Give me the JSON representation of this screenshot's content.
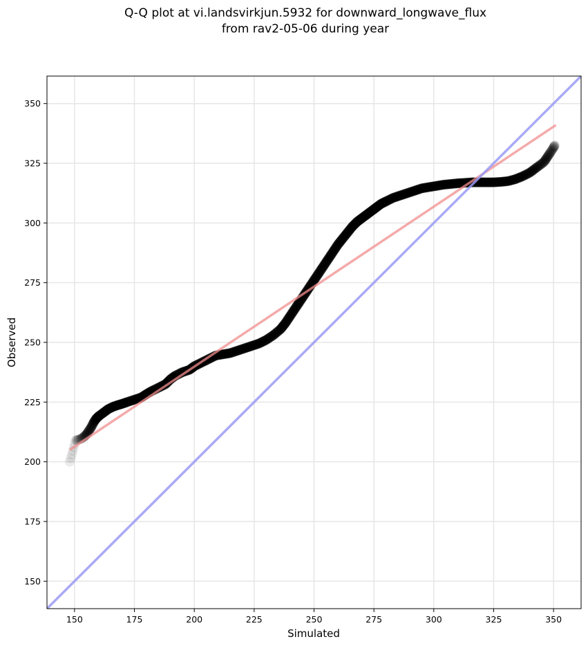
{
  "chart_data": {
    "type": "scatter",
    "title_lines": [
      "Q-Q plot at vi.landsvirkjun.5932 for downward_longwave_flux",
      "from rav2-05-06 during year"
    ],
    "xlabel": "Simulated",
    "ylabel": "Observed",
    "xlim": [
      138.5,
      361.5
    ],
    "ylim": [
      138.5,
      361.5
    ],
    "xticks": [
      150,
      175,
      200,
      225,
      250,
      275,
      300,
      325,
      350
    ],
    "yticks": [
      150,
      175,
      200,
      225,
      250,
      275,
      300,
      325,
      350
    ],
    "grid": true,
    "series": [
      {
        "kind": "quantile-points",
        "color": "#000000",
        "x": [
          148,
          150.5,
          152.5,
          154,
          155,
          156,
          157,
          158,
          159,
          160,
          162,
          164,
          166,
          168,
          170,
          172,
          175,
          178,
          180,
          182,
          185,
          188,
          190,
          192,
          195,
          198,
          200,
          203,
          206,
          209,
          212,
          215,
          218,
          221,
          224,
          227,
          230,
          233,
          236,
          238,
          240,
          242,
          244,
          246,
          248,
          250,
          252,
          254,
          256,
          258,
          260,
          262,
          264,
          266,
          268,
          270,
          272,
          274,
          276,
          278,
          280,
          283,
          286,
          289,
          292,
          295,
          298,
          301,
          304,
          307,
          310,
          313,
          316,
          319,
          322,
          325,
          328,
          331,
          334,
          337,
          340,
          342,
          344,
          346,
          347,
          348,
          349,
          350,
          350.5
        ],
        "y": [
          200,
          209,
          209.5,
          210.5,
          211.5,
          213,
          214.5,
          216.5,
          218,
          219,
          220.5,
          222,
          223,
          223.7,
          224.3,
          225,
          226,
          227,
          228.3,
          229.5,
          231,
          232.5,
          234.5,
          236,
          237.5,
          238.5,
          240,
          241.5,
          243,
          244.5,
          245,
          245.5,
          246.5,
          247.5,
          248.5,
          249.5,
          251,
          253,
          255.5,
          258,
          261,
          264,
          267,
          270,
          273,
          276,
          279,
          282,
          285,
          288,
          291,
          293.5,
          296,
          298.5,
          300.5,
          302,
          303.5,
          305,
          306.5,
          308,
          309,
          310.5,
          311.5,
          312.5,
          313.5,
          314.5,
          315,
          315.5,
          316,
          316.3,
          316.6,
          316.8,
          317,
          317,
          317,
          317,
          317.2,
          317.5,
          318.3,
          319.5,
          321,
          322.5,
          324,
          325.5,
          327,
          328.5,
          330,
          331.5,
          332.5
        ],
        "alpha": [
          0.08,
          0.1,
          0.12,
          0.15,
          0.18,
          0.2,
          0.25,
          0.3,
          0.35,
          0.45
        ]
      },
      {
        "kind": "fit-line",
        "color": "#f28e8e",
        "x": [
          148,
          351
        ],
        "y": [
          205,
          341
        ]
      },
      {
        "kind": "identity-line",
        "color": "#9a9af5",
        "x": [
          138.5,
          361.5
        ],
        "y": [
          138.5,
          361.5
        ]
      }
    ]
  }
}
